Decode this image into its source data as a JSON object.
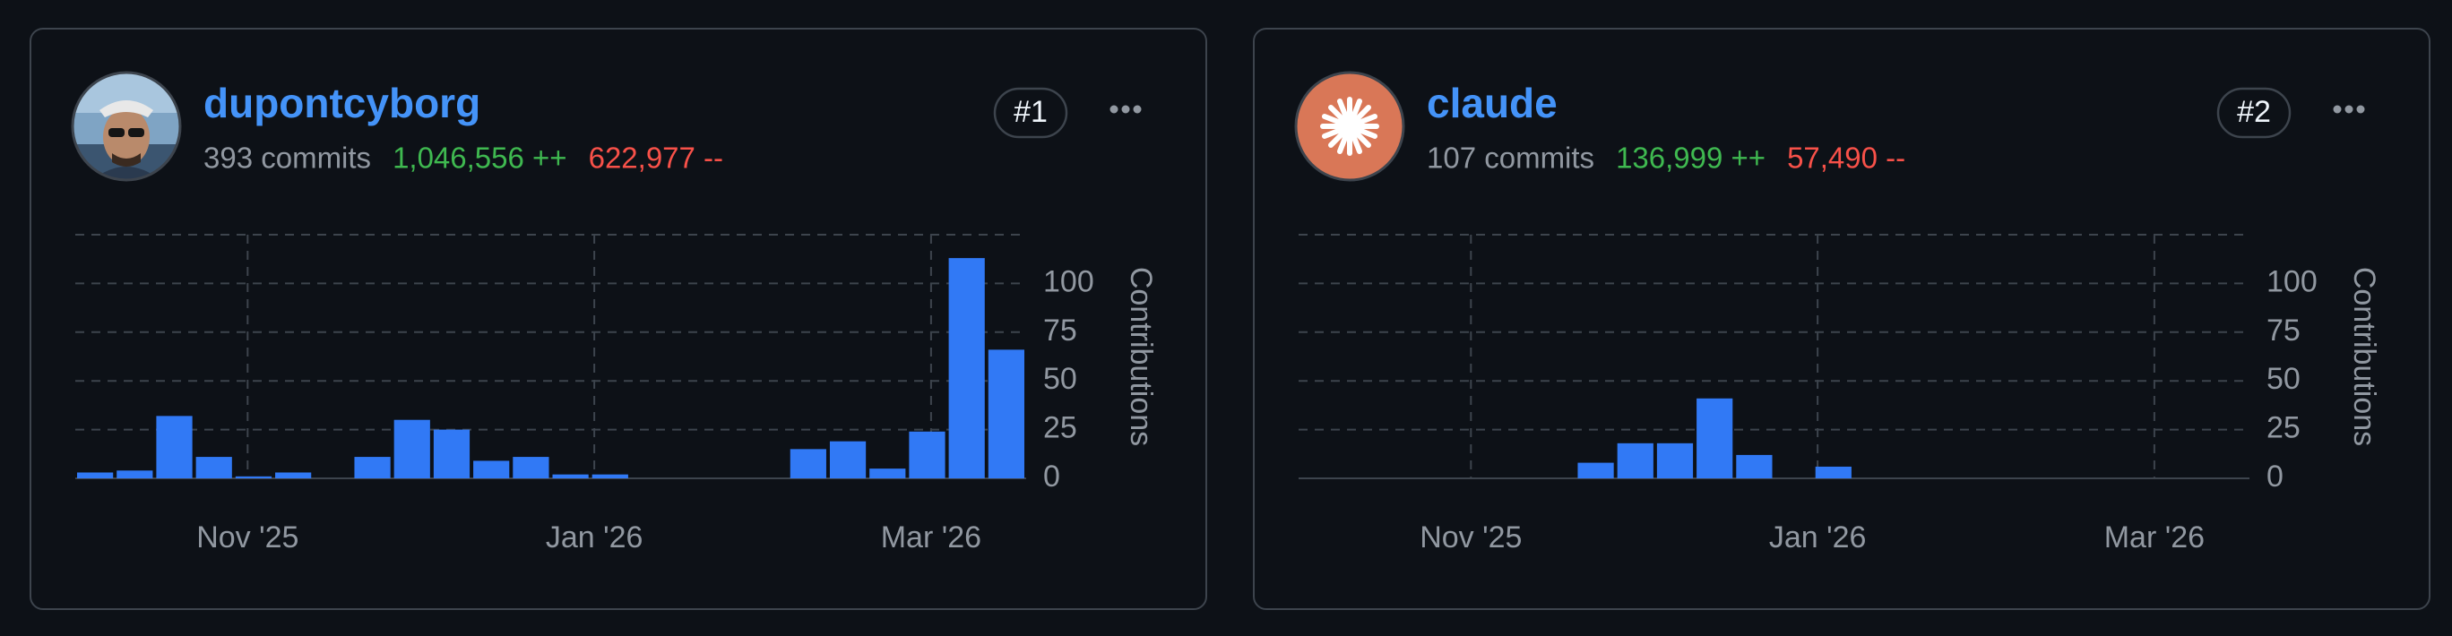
{
  "cards": [
    {
      "name": "dupontcyborg",
      "commits": "393 commits",
      "additions": "1,046,556 ++",
      "deletions": "622,977 --",
      "rank": "#1",
      "chart": {
        "type": "bar",
        "y_label": "Contributions",
        "color": "#3179f5",
        "values": [
          3,
          4,
          32,
          11,
          1,
          3,
          0,
          11,
          30,
          25,
          9,
          11,
          2,
          2,
          0,
          0,
          0,
          0,
          15,
          19,
          5,
          24,
          113,
          66
        ],
        "xlim": [
          0,
          24
        ],
        "xticks": [
          {
            "value": 4.35,
            "label": "Nov '25"
          },
          {
            "value": 13.1,
            "label": "Jan '26"
          },
          {
            "value": 21.6,
            "label": "Mar '26"
          }
        ],
        "ylim": [
          0,
          125
        ],
        "yticks": [
          0,
          25,
          50,
          75,
          100
        ],
        "grid": true
      }
    },
    {
      "name": "claude",
      "commits": "107 commits",
      "additions": "136,999 ++",
      "deletions": "57,490 --",
      "rank": "#2",
      "chart": {
        "type": "bar",
        "y_label": "Contributions",
        "color": "#3179f5",
        "values": [
          0,
          0,
          0,
          0,
          0,
          0,
          0,
          8,
          18,
          18,
          41,
          12,
          0,
          6,
          0,
          0,
          0,
          0,
          0,
          0,
          0,
          0,
          0,
          0
        ],
        "xlim": [
          0,
          24
        ],
        "xticks": [
          {
            "value": 4.35,
            "label": "Nov '25"
          },
          {
            "value": 13.1,
            "label": "Jan '26"
          },
          {
            "value": 21.6,
            "label": "Mar '26"
          }
        ],
        "ylim": [
          0,
          125
        ],
        "yticks": [
          0,
          25,
          50,
          75,
          100
        ],
        "grid": true
      }
    }
  ]
}
